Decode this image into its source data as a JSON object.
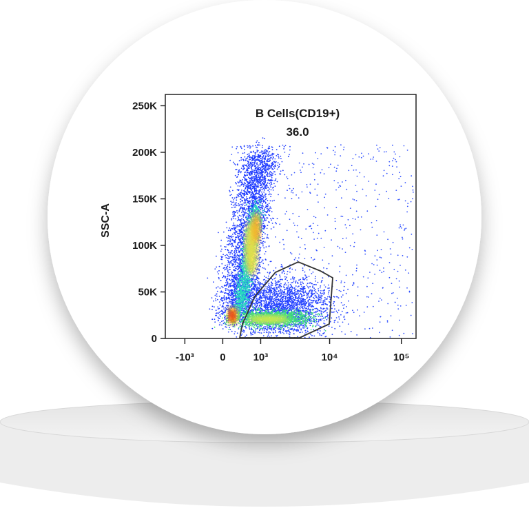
{
  "chart_data": {
    "type": "scatter",
    "ylabel": "SSC-A",
    "gate_label": "B Cells(CD19+)",
    "gate_value": "36.0",
    "xscale": "biexponential",
    "xlim": [
      -2000,
      160000
    ],
    "xticks": [
      {
        "value": -1000,
        "label": "-10³"
      },
      0,
      {
        "value": 1000,
        "label": "10³"
      },
      {
        "value": 10000,
        "label": "10⁴"
      },
      {
        "value": 100000,
        "label": "10⁵"
      }
    ],
    "ylim": [
      0,
      262144
    ],
    "yticks": [
      0,
      {
        "value": 50000,
        "label": "50K"
      },
      {
        "value": 100000,
        "label": "100K"
      },
      {
        "value": 150000,
        "label": "150K"
      },
      {
        "value": 200000,
        "label": "200K"
      },
      {
        "value": 250000,
        "label": "250K"
      }
    ]
  }
}
